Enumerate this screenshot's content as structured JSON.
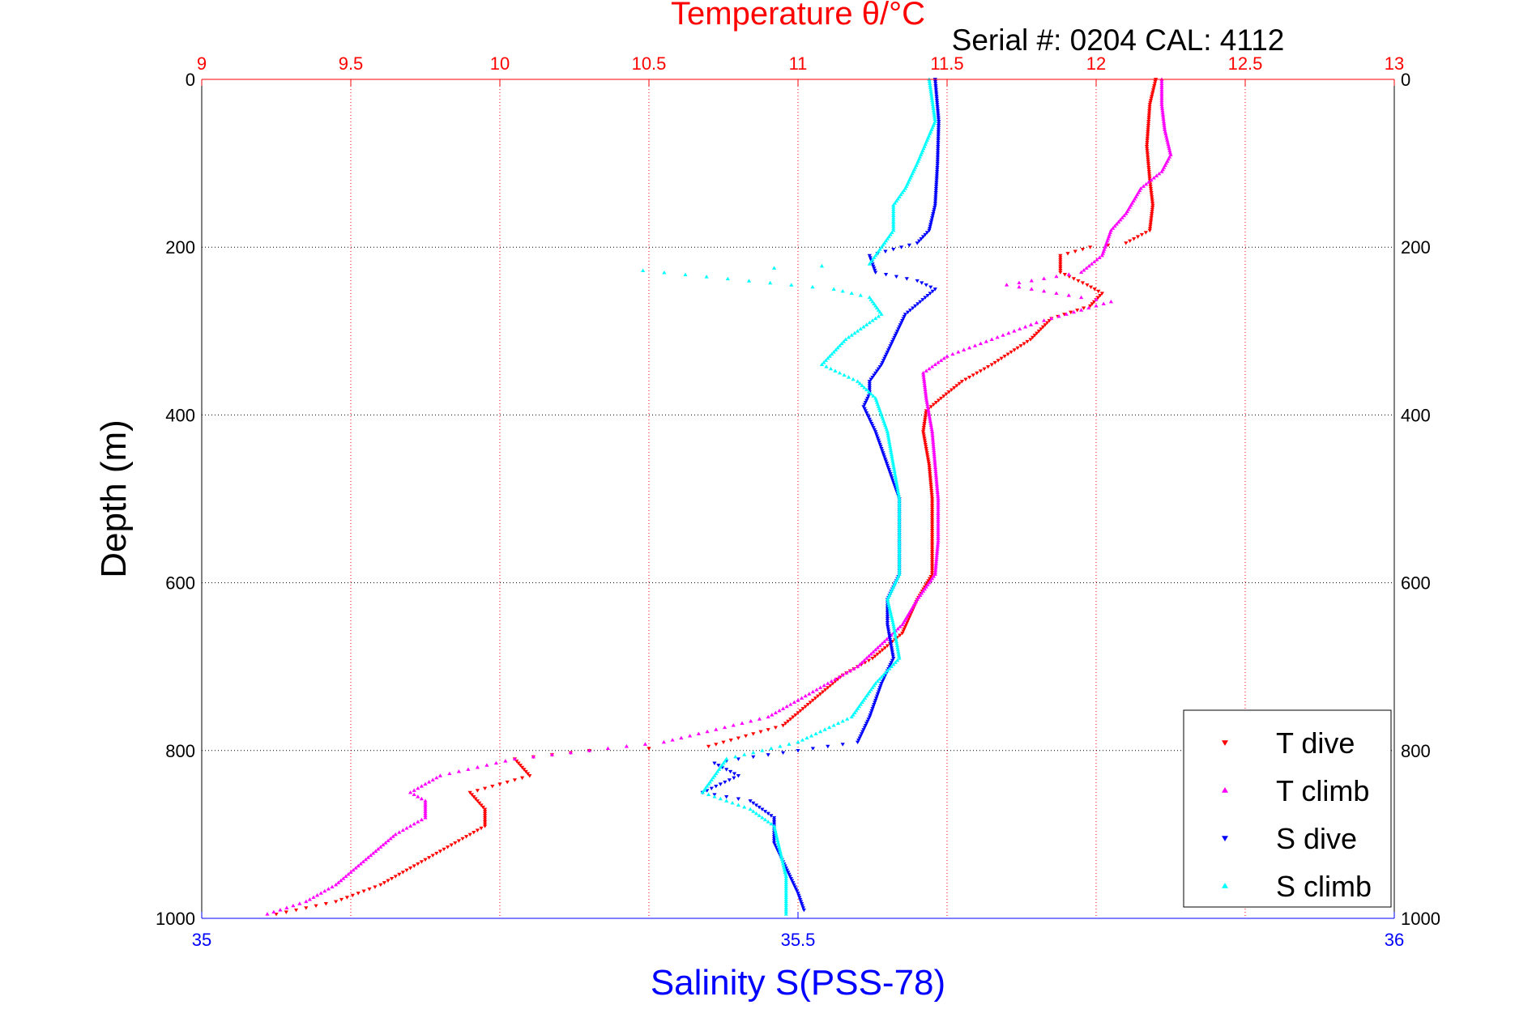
{
  "chart_data": {
    "type": "scatter",
    "title": "Temperature θ/°C",
    "subtitle": "Serial #: 0204  CAL: 4112",
    "xlabel_bottom": "Salinity S(PSS-78)",
    "ylabel": "Depth (m)",
    "x_top": {
      "label": "Temperature θ/°C",
      "lim": [
        9,
        13
      ],
      "ticks": [
        "9",
        "9.5",
        "10",
        "10.5",
        "11",
        "11.5",
        "12",
        "12.5",
        "13"
      ]
    },
    "x_bottom": {
      "label": "Salinity S(PSS-78)",
      "lim": [
        35,
        36
      ],
      "ticks": [
        "35",
        "35.5",
        "36"
      ]
    },
    "y": {
      "lim": [
        0,
        1000
      ],
      "reversed": true,
      "ticks": [
        "0",
        "200",
        "400",
        "600",
        "800",
        "1000"
      ]
    },
    "grid": true,
    "legend_position": "bottom-right",
    "colors": {
      "t_axis": "#ff0000",
      "s_axis": "#0000ff"
    },
    "series": [
      {
        "name": "T dive",
        "axis": "temperature",
        "color": "#ff0000",
        "marker": "triangle-down",
        "points": [
          [
            12.2,
            0
          ],
          [
            12.18,
            30
          ],
          [
            12.17,
            80
          ],
          [
            12.18,
            120
          ],
          [
            12.19,
            150
          ],
          [
            12.18,
            180
          ],
          [
            12.1,
            195
          ],
          [
            11.98,
            200
          ],
          [
            11.88,
            210
          ],
          [
            11.88,
            230
          ],
          [
            11.97,
            245
          ],
          [
            12.02,
            255
          ],
          [
            11.98,
            270
          ],
          [
            11.85,
            285
          ],
          [
            11.78,
            310
          ],
          [
            11.65,
            340
          ],
          [
            11.55,
            360
          ],
          [
            11.48,
            380
          ],
          [
            11.43,
            395
          ],
          [
            11.42,
            420
          ],
          [
            11.44,
            460
          ],
          [
            11.45,
            500
          ],
          [
            11.45,
            550
          ],
          [
            11.45,
            590
          ],
          [
            11.4,
            620
          ],
          [
            11.35,
            660
          ],
          [
            11.25,
            690
          ],
          [
            11.15,
            710
          ],
          [
            11.05,
            740
          ],
          [
            10.95,
            770
          ],
          [
            10.7,
            795
          ],
          [
            10.3,
            800
          ],
          [
            10.05,
            810
          ],
          [
            10.1,
            830
          ],
          [
            9.95,
            845
          ],
          [
            9.9,
            850
          ],
          [
            9.95,
            870
          ],
          [
            9.95,
            890
          ],
          [
            9.8,
            920
          ],
          [
            9.7,
            940
          ],
          [
            9.6,
            960
          ],
          [
            9.45,
            980
          ],
          [
            9.25,
            995
          ]
        ]
      },
      {
        "name": "T climb",
        "axis": "temperature",
        "color": "#ff00ff",
        "marker": "triangle-up",
        "points": [
          [
            12.22,
            0
          ],
          [
            12.22,
            30
          ],
          [
            12.23,
            60
          ],
          [
            12.25,
            90
          ],
          [
            12.22,
            110
          ],
          [
            12.15,
            130
          ],
          [
            12.1,
            160
          ],
          [
            12.05,
            180
          ],
          [
            12.02,
            210
          ],
          [
            11.95,
            230
          ],
          [
            11.7,
            245
          ],
          [
            11.95,
            260
          ],
          [
            12.05,
            265
          ],
          [
            11.8,
            290
          ],
          [
            11.65,
            310
          ],
          [
            11.5,
            330
          ],
          [
            11.42,
            350
          ],
          [
            11.43,
            380
          ],
          [
            11.45,
            420
          ],
          [
            11.46,
            460
          ],
          [
            11.47,
            500
          ],
          [
            11.47,
            550
          ],
          [
            11.46,
            590
          ],
          [
            11.4,
            620
          ],
          [
            11.35,
            650
          ],
          [
            11.2,
            700
          ],
          [
            11.1,
            720
          ],
          [
            10.9,
            760
          ],
          [
            10.55,
            790
          ],
          [
            10.3,
            800
          ],
          [
            10.05,
            810
          ],
          [
            9.8,
            830
          ],
          [
            9.7,
            850
          ],
          [
            9.75,
            860
          ],
          [
            9.75,
            880
          ],
          [
            9.65,
            900
          ],
          [
            9.55,
            930
          ],
          [
            9.45,
            960
          ],
          [
            9.35,
            980
          ],
          [
            9.22,
            995
          ]
        ]
      },
      {
        "name": "S dive",
        "axis": "salinity",
        "color": "#0000ff",
        "marker": "triangle-down",
        "points": [
          [
            35.615,
            0
          ],
          [
            35.618,
            50
          ],
          [
            35.617,
            100
          ],
          [
            35.615,
            150
          ],
          [
            35.61,
            180
          ],
          [
            35.6,
            195
          ],
          [
            35.56,
            210
          ],
          [
            35.565,
            230
          ],
          [
            35.6,
            240
          ],
          [
            35.615,
            250
          ],
          [
            35.59,
            280
          ],
          [
            35.58,
            310
          ],
          [
            35.57,
            340
          ],
          [
            35.56,
            360
          ],
          [
            35.56,
            375
          ],
          [
            35.555,
            390
          ],
          [
            35.565,
            420
          ],
          [
            35.575,
            460
          ],
          [
            35.585,
            500
          ],
          [
            35.585,
            550
          ],
          [
            35.585,
            590
          ],
          [
            35.575,
            620
          ],
          [
            35.575,
            650
          ],
          [
            35.58,
            690
          ],
          [
            35.57,
            720
          ],
          [
            35.56,
            760
          ],
          [
            35.55,
            790
          ],
          [
            35.5,
            800
          ],
          [
            35.45,
            810
          ],
          [
            35.43,
            815
          ],
          [
            35.45,
            830
          ],
          [
            35.42,
            850
          ],
          [
            35.46,
            860
          ],
          [
            35.48,
            880
          ],
          [
            35.48,
            910
          ],
          [
            35.49,
            940
          ],
          [
            35.5,
            970
          ],
          [
            35.505,
            990
          ]
        ]
      },
      {
        "name": "S climb",
        "axis": "salinity",
        "color": "#00ffff",
        "marker": "triangle-up",
        "points": [
          [
            35.61,
            0
          ],
          [
            35.615,
            50
          ],
          [
            35.6,
            100
          ],
          [
            35.59,
            130
          ],
          [
            35.58,
            150
          ],
          [
            35.58,
            180
          ],
          [
            35.56,
            220
          ],
          [
            35.48,
            225
          ],
          [
            35.37,
            228
          ],
          [
            35.53,
            250
          ],
          [
            35.56,
            260
          ],
          [
            35.57,
            280
          ],
          [
            35.54,
            310
          ],
          [
            35.52,
            340
          ],
          [
            35.55,
            360
          ],
          [
            35.565,
            380
          ],
          [
            35.575,
            420
          ],
          [
            35.58,
            460
          ],
          [
            35.585,
            500
          ],
          [
            35.585,
            550
          ],
          [
            35.585,
            590
          ],
          [
            35.575,
            620
          ],
          [
            35.58,
            650
          ],
          [
            35.585,
            690
          ],
          [
            35.565,
            720
          ],
          [
            35.545,
            760
          ],
          [
            35.5,
            790
          ],
          [
            35.44,
            810
          ],
          [
            35.42,
            850
          ],
          [
            35.46,
            870
          ],
          [
            35.48,
            890
          ],
          [
            35.485,
            920
          ],
          [
            35.49,
            950
          ],
          [
            35.49,
            980
          ],
          [
            35.49,
            995
          ]
        ]
      }
    ]
  }
}
